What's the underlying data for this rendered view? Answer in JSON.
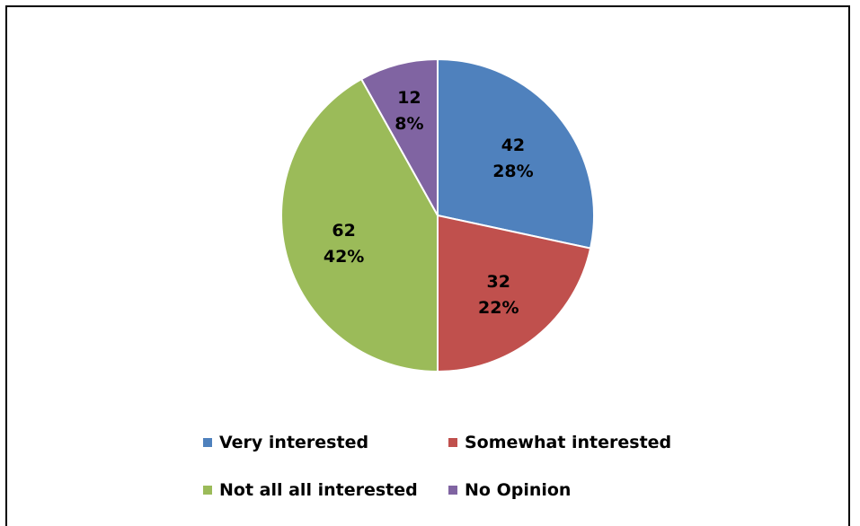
{
  "chart_data": {
    "type": "pie",
    "title": "",
    "slices": [
      {
        "label": "Very interested",
        "value": 42,
        "percent": "28%",
        "color": "#4F81BD"
      },
      {
        "label": "Somewhat interested",
        "value": 32,
        "percent": "22%",
        "color": "#C0504D"
      },
      {
        "label": "Not all all interested",
        "value": 62,
        "percent": "42%",
        "color": "#9BBB59"
      },
      {
        "label": "No Opinion",
        "value": 12,
        "percent": "8%",
        "color": "#8064A2"
      }
    ],
    "legend_position": "bottom"
  }
}
